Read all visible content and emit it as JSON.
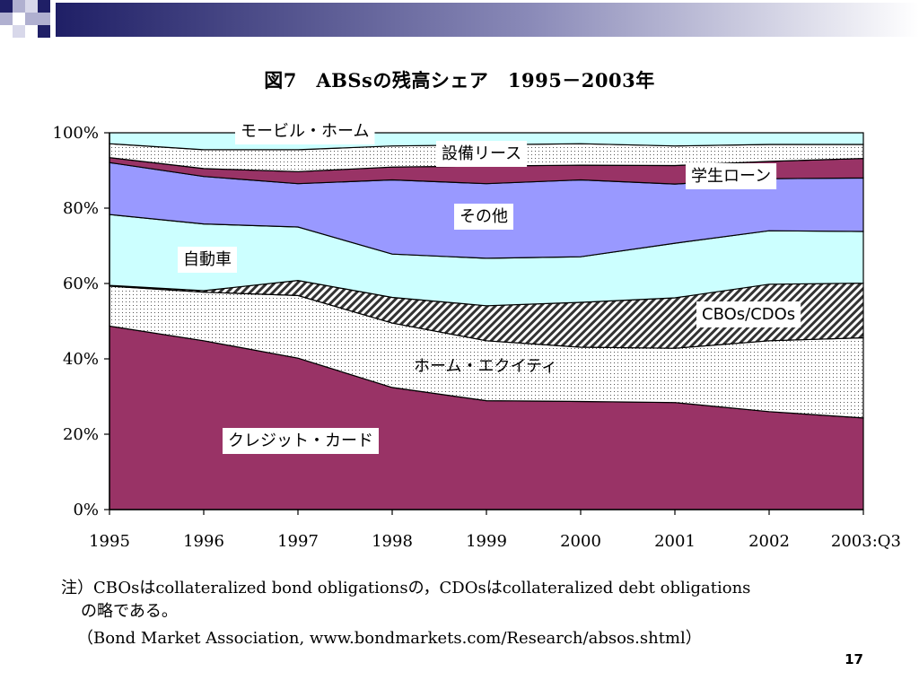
{
  "slide": {
    "title": "図7　ABSsの残高シェア　1995－2003年",
    "note_line1": "注）CBOsはcollateralized bond obligationsの，CDOsはcollateralized debt obligations",
    "note_line2": "の略である。",
    "source": "（Bond Market Association, www.bondmarkets.com/Research/absos.shtml）",
    "page_number": "17"
  },
  "colors": {
    "credit_card": "#993366",
    "home_equity": "#ffffff",
    "cbo_cdo": "#ffffff",
    "auto": "#ccffff",
    "other": "#9999ff",
    "student_loan": "#993366",
    "equipment_lease": "#ffffff",
    "manufactured_housing": "#ccffff",
    "deco_navy": "#1f1f66"
  },
  "chart_data": {
    "type": "area",
    "stacked": true,
    "x": [
      "1995",
      "1996",
      "1997",
      "1998",
      "1999",
      "2000",
      "2001",
      "2002",
      "2003:Q3"
    ],
    "ylim": [
      0,
      100
    ],
    "yticks": [
      "0%",
      "20%",
      "40%",
      "60%",
      "80%",
      "100%"
    ],
    "grid": false,
    "series": [
      {
        "name": "クレジット・カード",
        "key": "credit_card",
        "fill": "solid",
        "values": [
          48.7,
          44.8,
          40.2,
          32.4,
          28.9,
          28.7,
          28.4,
          26.0,
          24.3
        ]
      },
      {
        "name": "ホーム・エクイティ",
        "key": "home_equity",
        "fill": "dots",
        "values": [
          10.6,
          12.9,
          16.6,
          17.1,
          15.9,
          14.4,
          14.4,
          18.8,
          21.3
        ]
      },
      {
        "name": "CBOs/CDOs",
        "key": "cbo_cdo",
        "fill": "hatch",
        "values": [
          0.2,
          0.4,
          4.0,
          6.8,
          9.3,
          11.9,
          13.4,
          15.0,
          14.5
        ]
      },
      {
        "name": "自動車",
        "key": "auto",
        "fill": "solid",
        "values": [
          18.8,
          17.7,
          14.2,
          11.5,
          12.6,
          12.1,
          14.5,
          14.2,
          13.7
        ]
      },
      {
        "name": "その他",
        "key": "other",
        "fill": "solid",
        "values": [
          13.8,
          12.6,
          11.5,
          19.7,
          19.8,
          20.4,
          15.7,
          13.8,
          14.2
        ]
      },
      {
        "name": "学生ローン",
        "key": "student_loan",
        "fill": "solid",
        "values": [
          1.3,
          2.1,
          3.2,
          3.4,
          4.7,
          3.9,
          4.9,
          4.6,
          5.2
        ]
      },
      {
        "name": "設備リース",
        "key": "equipment_lease",
        "fill": "dots",
        "values": [
          3.7,
          5.0,
          5.8,
          5.6,
          5.6,
          5.7,
          5.2,
          4.5,
          3.7
        ]
      },
      {
        "name": "モービル・ホーム",
        "key": "manufactured_housing",
        "fill": "solid",
        "values": [
          2.9,
          4.5,
          4.5,
          3.5,
          3.2,
          2.9,
          3.5,
          3.1,
          3.1
        ]
      }
    ]
  }
}
